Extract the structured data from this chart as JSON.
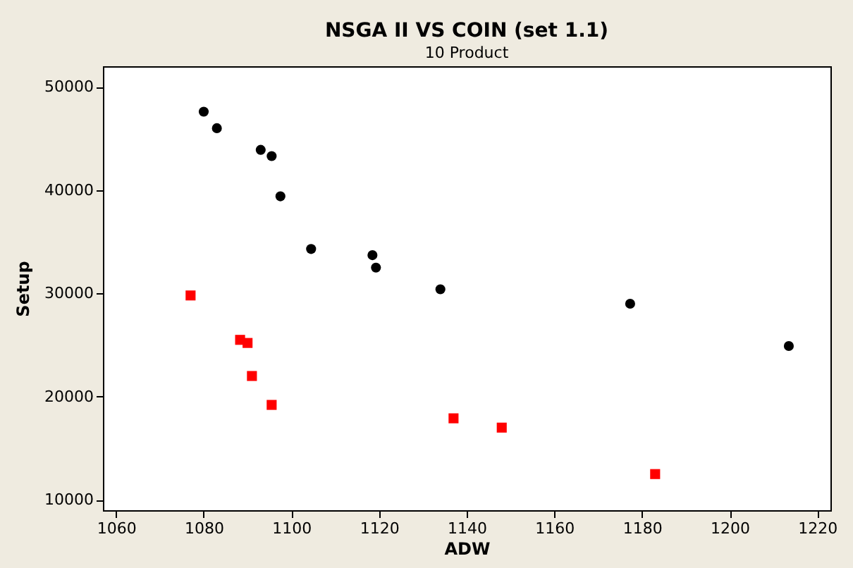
{
  "chart_data": {
    "type": "scatter",
    "title": "NSGA II VS COIN (set 1.1)",
    "subtitle": "10 Product",
    "xlabel": "ADW",
    "ylabel": "Setup",
    "xlim": [
      1057,
      1223
    ],
    "xticks": [
      1060,
      1080,
      1100,
      1120,
      1140,
      1160,
      1180,
      1200,
      1220
    ],
    "ylim": [
      9000,
      52000
    ],
    "yticks": [
      10000,
      20000,
      30000,
      40000,
      50000
    ],
    "grid": false,
    "legend": false,
    "series": [
      {
        "color": "#000000",
        "marker": "circle",
        "x": [
          1080,
          1083,
          1093,
          1095.5,
          1097.5,
          1104.5,
          1118.5,
          1119.3,
          1134,
          1177.3,
          1213.5
        ],
        "values": [
          47600,
          46000,
          43900,
          43300,
          39400,
          34300,
          33700,
          32500,
          30400,
          29000,
          24900
        ]
      },
      {
        "color": "#ff0000",
        "marker": "square",
        "x": [
          1077,
          1088.3,
          1090,
          1091,
          1095.5,
          1137,
          1148,
          1183
        ],
        "values": [
          29800,
          25500,
          25200,
          22000,
          19200,
          17900,
          17000,
          12500
        ]
      }
    ]
  }
}
